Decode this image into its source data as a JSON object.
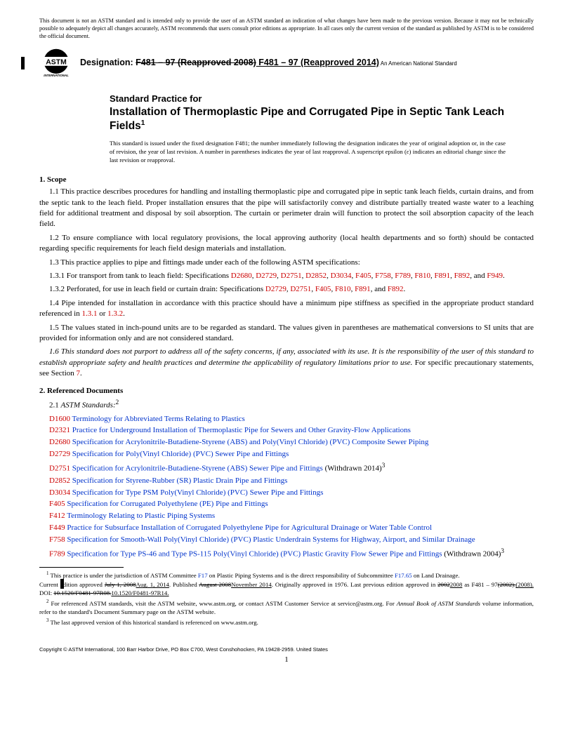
{
  "disclaimer": "This document is not an ASTM standard and is intended only to provide the user of an ASTM standard an indication of what changes have been made to the previous version. Because it may not be technically possible to adequately depict all changes accurately, ASTM recommends that users consult prior editions as appropriate. In all cases only the current version of the standard as published by ASTM is to be considered the official document.",
  "designation_label": "Designation: ",
  "designation_old": "F481 – 97 (Reapproved 2008)",
  "designation_new": " F481 – 97 (Reapproved 2014)",
  "ans_note": "An American National Standard",
  "title_pre": "Standard Practice for",
  "title_main": "Installation of Thermoplastic Pipe and Corrugated Pipe in Septic Tank Leach Fields",
  "title_sup": "1",
  "issuance": "This standard is issued under the fixed designation F481; the number immediately following the designation indicates the year of original adoption or, in the case of revision, the year of last revision. A number in parentheses indicates the year of last reapproval. A superscript epsilon (ε) indicates an editorial change since the last revision or reapproval.",
  "s1_head": "1. Scope",
  "p11": "1.1 This practice describes procedures for handling and installing thermoplastic pipe and corrugated pipe in septic tank leach fields, curtain drains, and from the septic tank to the leach field. Proper installation ensures that the pipe will satisfactorily convey and distribute partially treated waste water to a leaching field for additional treatment and disposal by soil absorption. The curtain or perimeter drain will function to protect the soil absorption capacity of the leach field.",
  "p12": "1.2 To ensure compliance with local regulatory provisions, the local approving authority (local health departments and so forth) should be contacted regarding specific requirements for leach field design materials and installation.",
  "p13": "1.3 This practice applies to pipe and fittings made under each of the following ASTM specifications:",
  "p131_lead": "1.3.1 For transport from tank to leach field: Specifications ",
  "p131_specs": [
    "D2680",
    "D2729",
    "D2751",
    "D2852",
    "D3034",
    "F405",
    "F758",
    "F789",
    "F810",
    "F891",
    "F892"
  ],
  "p131_and": ", and ",
  "p131_last": "F949",
  "p132_lead": "1.3.2 Perforated, for use in leach field or curtain drain: Specifications ",
  "p132_specs": [
    "D2729",
    "D2751",
    "F405",
    "F810",
    "F891"
  ],
  "p132_and": ", and ",
  "p132_last": "F892",
  "p14_a": "1.4 Pipe intended for installation in accordance with this practice should have a minimum pipe stiffness as specified in the appropriate product standard referenced in ",
  "p14_r1": "1.3.1",
  "p14_or": " or ",
  "p14_r2": "1.3.2",
  "p15": "1.5 The values stated in inch-pound units are to be regarded as standard. The values given in parentheses are mathematical conversions to SI units that are provided for information only and are not considered standard.",
  "p16_i": "1.6 This standard does not purport to address all of the safety concerns, if any, associated with its use. It is the responsibility of the user of this standard to establish appropriate safety and health practices and determine the applicability of regulatory limitations prior to use.",
  "p16_b": " For specific precautionary statements, see Section ",
  "p16_ref": "7",
  "s2_head": "2. Referenced Documents",
  "p21_a": "2.1 ",
  "p21_b": "ASTM Standards:",
  "p21_sup": "2",
  "refs": [
    {
      "code": "D1600",
      "title": "Terminology for Abbreviated Terms Relating to Plastics",
      "tail": ""
    },
    {
      "code": "D2321",
      "title": "Practice for Underground Installation of Thermoplastic Pipe for Sewers and Other Gravity-Flow Applications",
      "tail": ""
    },
    {
      "code": "D2680",
      "title": "Specification for Acrylonitrile-Butadiene-Styrene (ABS) and Poly(Vinyl Chloride) (PVC) Composite Sewer Piping",
      "tail": ""
    },
    {
      "code": "D2729",
      "title": "Specification for Poly(Vinyl Chloride) (PVC) Sewer Pipe and Fittings",
      "tail": ""
    },
    {
      "code": "D2751",
      "title": "Specification for Acrylonitrile-Butadiene-Styrene (ABS) Sewer Pipe and Fittings",
      "tail": " (Withdrawn 2014)",
      "sup": "3"
    },
    {
      "code": "D2852",
      "title": "Specification for Styrene-Rubber (SR) Plastic Drain Pipe and Fittings",
      "tail": ""
    },
    {
      "code": "D3034",
      "title": "Specification for Type PSM Poly(Vinyl Chloride) (PVC) Sewer Pipe and Fittings",
      "tail": ""
    },
    {
      "code": "F405",
      "title": "Specification for Corrugated Polyethylene (PE) Pipe and Fittings",
      "tail": ""
    },
    {
      "code": "F412",
      "title": "Terminology Relating to Plastic Piping Systems",
      "tail": ""
    },
    {
      "code": "F449",
      "title": "Practice for Subsurface Installation of Corrugated Polyethylene Pipe for Agricultural Drainage or Water Table Control",
      "tail": ""
    },
    {
      "code": "F758",
      "title": "Specification for Smooth-Wall Poly(Vinyl Chloride) (PVC) Plastic Underdrain Systems for Highway, Airport, and Similar Drainage",
      "tail": ""
    },
    {
      "code": "F789",
      "title": "Specification for Type PS-46 and Type PS-115 Poly(Vinyl Chloride) (PVC) Plastic Gravity Flow Sewer Pipe and Fittings",
      "tail": " (Withdrawn 2004)",
      "sup": "3"
    }
  ],
  "fn1_a": " This practice is under the jurisdiction of ASTM Committee ",
  "fn1_l1": "F17",
  "fn1_b": " on Plastic Piping Systems and is the direct responsibility of Subcommittee ",
  "fn1_l2": "F17.65",
  "fn1_c": "  on Land Drainage.",
  "fn1_line2_a": "Current edition approved ",
  "fn1_old1": "July 1, 2008",
  "fn1_new1": "Aug. 1, 2014",
  "fn1_line2_b": ". Published ",
  "fn1_old2": "August 2008",
  "fn1_new2": "November 2014",
  "fn1_line2_c": ". Originally approved in 1976. Last previous edition approved in ",
  "fn1_old3": "2002",
  "fn1_new3": "2008",
  "fn1_line2_d": " as F481 – 97",
  "fn1_old4": "(2002).",
  "fn1_new4": "(2008).",
  "fn1_doi_a": " DOI: ",
  "fn1_doi_old": "10.1520/F0481-97R08.",
  "fn1_doi_new": "10.1520/F0481-97R14.",
  "fn2": " For referenced ASTM standards, visit the ASTM website, www.astm.org, or contact ASTM Customer Service at service@astm.org. For Annual Book of ASTM Standards volume information, refer to the standard's Document Summary page on the ASTM website.",
  "fn2_i": "Annual Book of ASTM Standards",
  "fn3": " The last approved version of this historical standard is referenced on www.astm.org.",
  "copyright": "Copyright © ASTM International, 100 Barr Harbor Drive, PO Box C700, West Conshohocken, PA 19428-2959. United States",
  "pagenum": "1"
}
